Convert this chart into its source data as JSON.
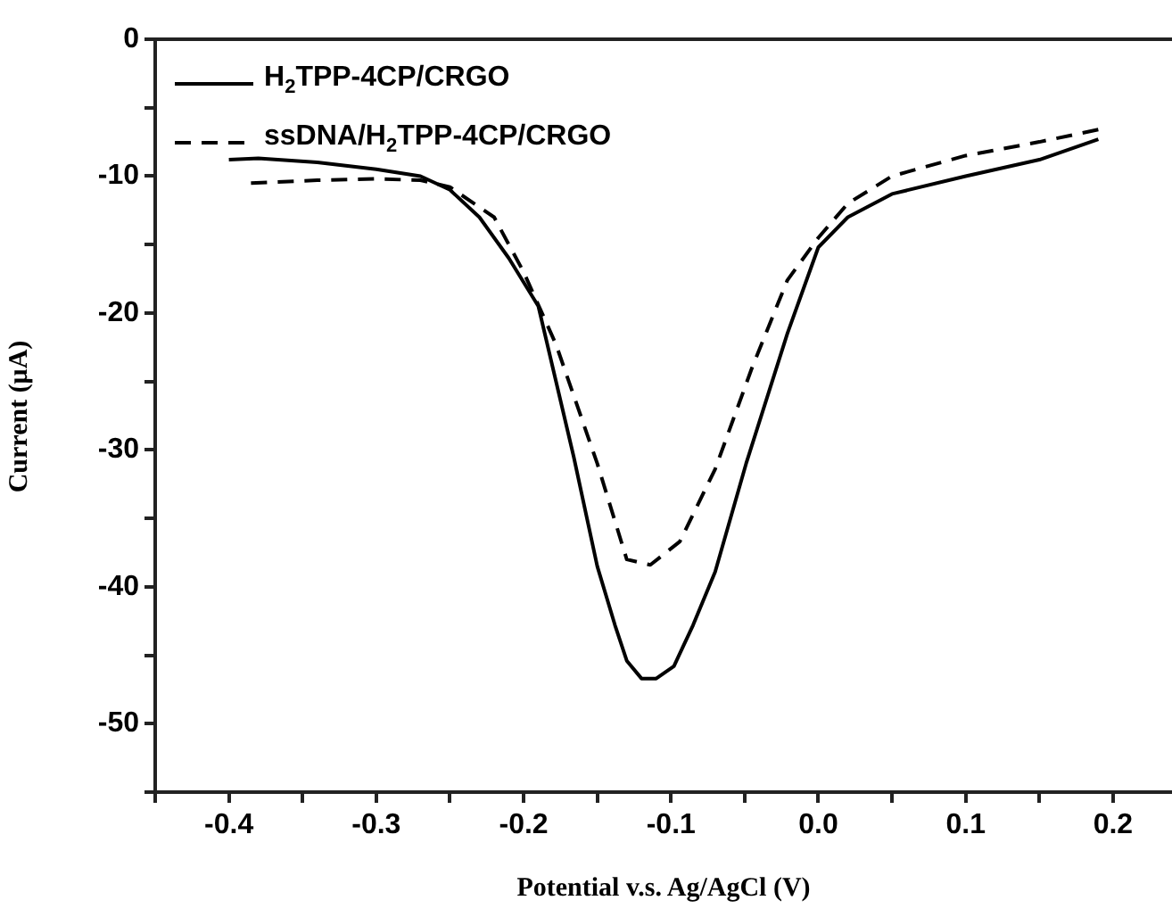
{
  "chart_data": {
    "type": "line",
    "xlabel": "Potential v.s. Ag/AgCl (V)",
    "ylabel": "Current (μA)",
    "xlim": [
      -0.45,
      0.24
    ],
    "xticks": [
      {
        "value": -0.45,
        "label": null
      },
      -0.4,
      {
        "value": -0.35,
        "label": null
      },
      -0.3,
      {
        "value": -0.25,
        "label": null
      },
      -0.2,
      {
        "value": -0.15,
        "label": null
      },
      -0.1,
      {
        "value": -0.05,
        "label": null
      },
      {
        "value": 0,
        "label": "0.0"
      },
      {
        "value": 0.05,
        "label": null
      },
      0.1,
      {
        "value": 0.15,
        "label": null
      },
      0.2
    ],
    "ylim": [
      -55,
      0
    ],
    "yticks": [
      {
        "value": -55,
        "label": null
      },
      -50,
      {
        "value": -45,
        "label": null
      },
      -40,
      {
        "value": -35,
        "label": null
      },
      -30,
      {
        "value": -25,
        "label": null
      },
      -20,
      {
        "value": -15,
        "label": null
      },
      -10,
      {
        "value": -5,
        "label": null
      },
      0
    ],
    "legend": "top left",
    "grid": false,
    "marker": "none",
    "series": [
      {
        "name": "H$_{2}$TPP-4CP/CRGO",
        "color": "#000000",
        "line_style": "solid",
        "x": [
          -0.4,
          -0.38,
          -0.34,
          -0.3,
          -0.27,
          -0.25,
          -0.23,
          -0.21,
          -0.19,
          -0.166,
          -0.15,
          -0.138,
          -0.13,
          -0.12,
          -0.11,
          -0.098,
          -0.085,
          -0.07,
          -0.049,
          -0.021,
          -0.005,
          0.0,
          0.02,
          0.05,
          0.1,
          0.15,
          0.19
        ],
        "values": [
          -8.8,
          -8.7,
          -9.0,
          -9.5,
          -10.0,
          -11.0,
          -13.0,
          -16.0,
          -19.5,
          -30.5,
          -38.5,
          -42.8,
          -45.4,
          -46.7,
          -46.7,
          -45.8,
          -42.8,
          -38.9,
          -31.0,
          -21.5,
          -16.7,
          -15.2,
          -13.0,
          -11.3,
          -10.0,
          -8.8,
          -7.3
        ]
      },
      {
        "name": "ssDNA/H$_{2}$TPP-4CP/CRGO",
        "color": "#000000",
        "line_style": "dashed",
        "x": [
          -0.385,
          -0.34,
          -0.3,
          -0.27,
          -0.25,
          -0.22,
          -0.2,
          -0.178,
          -0.15,
          -0.13,
          -0.114,
          -0.094,
          -0.07,
          -0.045,
          -0.021,
          0.0,
          0.02,
          0.05,
          0.1,
          0.15,
          0.19
        ],
        "values": [
          -10.5,
          -10.3,
          -10.2,
          -10.3,
          -10.8,
          -13.0,
          -17.0,
          -22.3,
          -31.0,
          -38.0,
          -38.4,
          -36.7,
          -31.4,
          -24.0,
          -17.6,
          -14.5,
          -12.0,
          -10.0,
          -8.5,
          -7.5,
          -6.6
        ]
      }
    ]
  }
}
